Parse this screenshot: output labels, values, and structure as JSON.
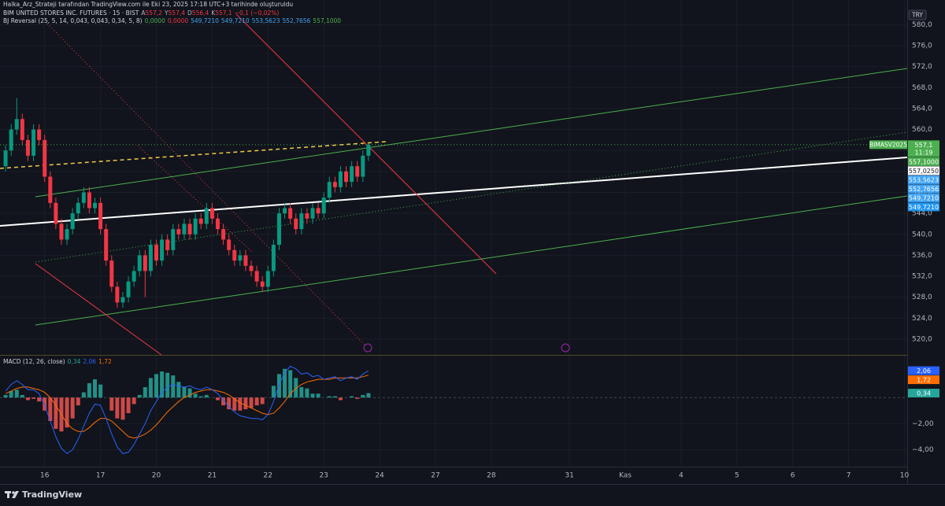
{
  "header": {
    "attribution": "Halka_Arz_Strateji tarafından TradingView.com ile Eki 23, 2025 17:18 UTC+3 tarihinde oluşturuldu",
    "symbol": "BIM UNITED STORES INC. FUTURES · 15 · BIST",
    "ohlc": [
      {
        "key": "A",
        "value": "557,2"
      },
      {
        "key": "Y",
        "value": "557,4"
      },
      {
        "key": "D",
        "value": "556,4"
      },
      {
        "key": "K",
        "value": "557,1"
      }
    ],
    "change": "−0,1 (−0,02%)",
    "ohlc_color": "#f23645",
    "indicator": "BJ Reversal (25, 5, 14, 0,043, 0,043, 0,34, 5, 8)",
    "indicator_values": [
      {
        "value": "0,0000",
        "color": "#4caf50"
      },
      {
        "value": "0,0000",
        "color": "#f23645"
      },
      {
        "value": "549,7210",
        "color": "#42a5f5"
      },
      {
        "value": "549,7210",
        "color": "#42a5f5"
      },
      {
        "value": "553,5623",
        "color": "#42a5f5"
      },
      {
        "value": "552,7656",
        "color": "#42a5f5"
      },
      {
        "value": "557,1000",
        "color": "#4caf50"
      }
    ],
    "currency": "TRY"
  },
  "footer": {
    "brand": "TradingView"
  },
  "chart_data": [
    {
      "type": "candlestick",
      "x": [
        0.3,
        0.4,
        0.5,
        0.6,
        0.7,
        0.8,
        0.9,
        1.0,
        1.1,
        1.2,
        1.3,
        1.4,
        1.5,
        1.6,
        1.7,
        1.8,
        1.9,
        2.0,
        2.1,
        2.2,
        2.3,
        2.4,
        2.5,
        2.6,
        2.7,
        2.8,
        2.9,
        3.0,
        3.1,
        3.2,
        3.3,
        3.4,
        3.5,
        3.6,
        3.7,
        3.8,
        3.9,
        4.0,
        4.1,
        4.2,
        4.3,
        4.4,
        4.5,
        4.6,
        4.7,
        4.8,
        4.9,
        5.0,
        5.1,
        5.2,
        5.3,
        5.4,
        5.5,
        5.6,
        5.7,
        5.8,
        5.9,
        6.0,
        6.1,
        6.2,
        6.3,
        6.4,
        6.5,
        6.6,
        6.7,
        6.8
      ],
      "open": [
        553,
        556,
        560,
        562,
        558,
        555,
        560,
        558,
        551,
        546,
        542,
        539,
        541,
        544,
        546,
        548,
        545,
        546,
        541,
        535,
        530,
        527,
        528,
        531,
        533,
        536,
        533,
        538,
        535,
        539,
        537,
        541,
        540,
        542,
        540,
        543,
        542,
        545,
        543,
        541,
        539,
        537,
        535,
        536,
        534,
        533,
        531,
        530,
        533,
        538,
        544,
        545,
        543,
        541,
        544,
        543,
        545,
        544,
        547,
        550,
        549,
        552,
        550,
        553,
        551,
        555
      ],
      "high": [
        557,
        561,
        566,
        563,
        559,
        561,
        561,
        559,
        552,
        547,
        543,
        542,
        545,
        547,
        549,
        549,
        547,
        547,
        542,
        536,
        531,
        529,
        532,
        534,
        537,
        537,
        539,
        539,
        540,
        540,
        542,
        542,
        543,
        543,
        544,
        544,
        546,
        546,
        544,
        542,
        540,
        538,
        537,
        537,
        535,
        534,
        532,
        534,
        539,
        545,
        546,
        546,
        544,
        545,
        545,
        546,
        546,
        548,
        551,
        551,
        553,
        553,
        554,
        554,
        556,
        557.4
      ],
      "low": [
        552,
        555,
        559,
        557,
        554,
        554,
        557,
        550,
        545,
        541,
        538,
        538,
        540,
        543,
        545,
        544,
        544,
        540,
        534,
        529,
        526,
        526,
        527,
        530,
        532,
        528,
        532,
        534,
        534,
        536,
        536,
        539,
        539,
        539,
        539,
        541,
        541,
        542,
        540,
        538,
        536,
        534,
        534,
        533,
        532,
        530,
        529,
        529,
        532,
        537,
        543,
        542,
        540,
        540,
        542,
        542,
        543,
        543,
        546,
        548,
        548,
        549,
        549,
        550,
        550,
        554
      ],
      "close": [
        556,
        560,
        562,
        558,
        555,
        560,
        558,
        551,
        546,
        542,
        539,
        541,
        544,
        546,
        548,
        545,
        546,
        541,
        535,
        530,
        527,
        528,
        531,
        533,
        536,
        533,
        538,
        535,
        539,
        537,
        541,
        540,
        542,
        540,
        543,
        542,
        545,
        543,
        541,
        539,
        537,
        535,
        536,
        534,
        533,
        531,
        530,
        533,
        538,
        544,
        545,
        543,
        541,
        544,
        543,
        545,
        544,
        547,
        550,
        549,
        552,
        550,
        553,
        551,
        555,
        557.1
      ],
      "up_color": "#089981",
      "down_color": "#f23645",
      "xlim": [
        0.2,
        16.45
      ],
      "xticks": [
        {
          "value": 1,
          "label": "16"
        },
        {
          "value": 2,
          "label": "17"
        },
        {
          "value": 3,
          "label": "20"
        },
        {
          "value": 4,
          "label": "21"
        },
        {
          "value": 5,
          "label": "22"
        },
        {
          "value": 6,
          "label": "23"
        },
        {
          "value": 7,
          "label": "24"
        },
        {
          "value": 8,
          "label": "27"
        },
        {
          "value": 9,
          "label": "28"
        },
        {
          "value": 10.4,
          "label": "31"
        },
        {
          "value": 11.4,
          "label": "Kas"
        },
        {
          "value": 12.4,
          "label": "4"
        },
        {
          "value": 13.4,
          "label": "5"
        },
        {
          "value": 14.4,
          "label": "6"
        },
        {
          "value": 15.4,
          "label": "7"
        },
        {
          "value": 16.4,
          "label": "10"
        }
      ],
      "ylim": [
        517,
        582
      ],
      "yticks": [
        {
          "value": 520,
          "label": "520,0"
        },
        {
          "value": 524,
          "label": "524,0"
        },
        {
          "value": 528,
          "label": "528,0"
        },
        {
          "value": 532,
          "label": "532,0"
        },
        {
          "value": 536,
          "label": "536,0"
        },
        {
          "value": 540,
          "label": "540,0"
        },
        {
          "value": 544,
          "label": "544,0"
        },
        {
          "value": 548,
          "label": "548,0"
        },
        {
          "value": 552,
          "label": "552,0"
        },
        {
          "value": 556,
          "label": "556,0"
        },
        {
          "value": 560,
          "label": "560,0"
        },
        {
          "value": 564,
          "label": "564,0"
        },
        {
          "value": 568,
          "label": "568,0"
        },
        {
          "value": 572,
          "label": "572,0"
        },
        {
          "value": 576,
          "label": "576,0"
        },
        {
          "value": 580,
          "label": "580,0"
        }
      ],
      "grid": true,
      "last_price": {
        "name": "BIMASV2025",
        "value": 557.1,
        "label": "557,1",
        "countdown": "11:19",
        "color": "#4caf50"
      },
      "price_labels": [
        {
          "value": 557.1,
          "label": "557,1000",
          "color": "#4caf50"
        },
        {
          "value": 557.025,
          "label": "557,0250",
          "color": "#ffffff"
        },
        {
          "value": 553.5623,
          "label": "553,5623",
          "color": "#42a5f5"
        },
        {
          "value": 552.7656,
          "label": "552,7656",
          "color": "#42a5f5"
        },
        {
          "value": 549.721,
          "label": "549,7210",
          "color": "#42a5f5"
        },
        {
          "value": 549.721,
          "label": "549,7210",
          "color": "#2196f3"
        }
      ]
    },
    {
      "type": "macd",
      "title": "MACD (12, 26, close)",
      "legend_values": [
        {
          "label": "0,34",
          "color": "#26a69a"
        },
        {
          "label": "2,06",
          "color": "#2962ff"
        },
        {
          "label": "1,72",
          "color": "#ff6d00"
        }
      ],
      "x": [
        0.3,
        0.4,
        0.5,
        0.6,
        0.7,
        0.8,
        0.9,
        1.0,
        1.1,
        1.2,
        1.3,
        1.4,
        1.5,
        1.6,
        1.7,
        1.8,
        1.9,
        2.0,
        2.1,
        2.2,
        2.3,
        2.4,
        2.5,
        2.6,
        2.7,
        2.8,
        2.9,
        3.0,
        3.1,
        3.2,
        3.3,
        3.4,
        3.5,
        3.6,
        3.7,
        3.8,
        3.9,
        4.0,
        4.1,
        4.2,
        4.3,
        4.4,
        4.5,
        4.6,
        4.7,
        4.8,
        4.9,
        5.0,
        5.1,
        5.2,
        5.3,
        5.4,
        5.5,
        5.6,
        5.7,
        5.8,
        5.9,
        6.0,
        6.1,
        6.2,
        6.3,
        6.4,
        6.5,
        6.6,
        6.7,
        6.8
      ],
      "histogram": {
        "values": [
          0.2,
          0.5,
          0.6,
          0.2,
          -0.2,
          -0.1,
          -0.3,
          -1.0,
          -1.8,
          -2.4,
          -2.6,
          -2.3,
          -1.6,
          -0.6,
          0.4,
          1.1,
          1.4,
          1.0,
          0,
          -1.0,
          -1.6,
          -1.7,
          -1.2,
          -0.5,
          0.2,
          0.8,
          1.5,
          1.8,
          2.0,
          1.9,
          1.7,
          1.2,
          0.8,
          0.7,
          0.3,
          0.1,
          0.2,
          0.0,
          -0.2,
          -0.6,
          -0.9,
          -1.0,
          -1.0,
          -0.9,
          -0.8,
          -0.6,
          -0.5,
          0.0,
          0.9,
          1.8,
          2.2,
          2.1,
          1.5,
          0.8,
          0.7,
          0.3,
          0.3,
          0.0,
          0.1,
          0.1,
          -0.2,
          0.0,
          0.1,
          -0.1,
          0.2,
          0.34
        ],
        "positive_color": "#26a69a",
        "negative_color": "#ef5350"
      },
      "macd": {
        "color": "#2962ff",
        "values": [
          0.5,
          1.0,
          1.3,
          1.0,
          0.6,
          0.6,
          0.3,
          -0.6,
          -1.8,
          -3.0,
          -3.9,
          -4.3,
          -4.0,
          -3.2,
          -2.2,
          -1.2,
          -0.5,
          -0.6,
          -1.6,
          -2.8,
          -3.8,
          -4.3,
          -4.2,
          -3.6,
          -2.8,
          -2.0,
          -1.0,
          -0.3,
          0.4,
          0.8,
          1.0,
          0.9,
          0.8,
          0.9,
          0.7,
          0.6,
          0.8,
          0.6,
          0.3,
          -0.2,
          -0.7,
          -1.1,
          -1.4,
          -1.5,
          -1.6,
          -1.6,
          -1.7,
          -1.3,
          -0.3,
          1.0,
          1.9,
          2.4,
          2.2,
          1.8,
          1.9,
          1.6,
          1.7,
          1.4,
          1.5,
          1.6,
          1.3,
          1.5,
          1.6,
          1.4,
          1.8,
          2.06
        ]
      },
      "signal": {
        "color": "#ff6d00",
        "values": [
          0.3,
          0.5,
          0.7,
          0.8,
          0.8,
          0.7,
          0.6,
          0.4,
          0.0,
          -0.6,
          -1.3,
          -2.0,
          -2.4,
          -2.6,
          -2.6,
          -2.3,
          -1.9,
          -1.6,
          -1.6,
          -1.8,
          -2.2,
          -2.6,
          -3.0,
          -3.1,
          -3.0,
          -2.8,
          -2.5,
          -2.1,
          -1.6,
          -1.1,
          -0.7,
          -0.3,
          0.0,
          0.2,
          0.4,
          0.5,
          0.6,
          0.6,
          0.5,
          0.4,
          0.2,
          -0.1,
          -0.4,
          -0.6,
          -0.8,
          -1.0,
          -1.2,
          -1.3,
          -1.2,
          -0.8,
          -0.3,
          0.3,
          0.7,
          1.0,
          1.2,
          1.3,
          1.4,
          1.4,
          1.4,
          1.5,
          1.5,
          1.5,
          1.5,
          1.5,
          1.6,
          1.72
        ]
      },
      "xlim": [
        0.2,
        16.45
      ],
      "ylim": [
        -5.3,
        3.15
      ],
      "yticks": [
        {
          "value": -4,
          "label": "−4,00"
        },
        {
          "value": -2,
          "label": "−2,00"
        }
      ],
      "badges": [
        {
          "value": 2.06,
          "label": "2,06",
          "color": "#2962ff"
        },
        {
          "value": 1.72,
          "label": "1,72",
          "color": "#ff6d00"
        },
        {
          "value": 0.34,
          "label": "0,34",
          "color": "#26a69a"
        }
      ]
    }
  ]
}
